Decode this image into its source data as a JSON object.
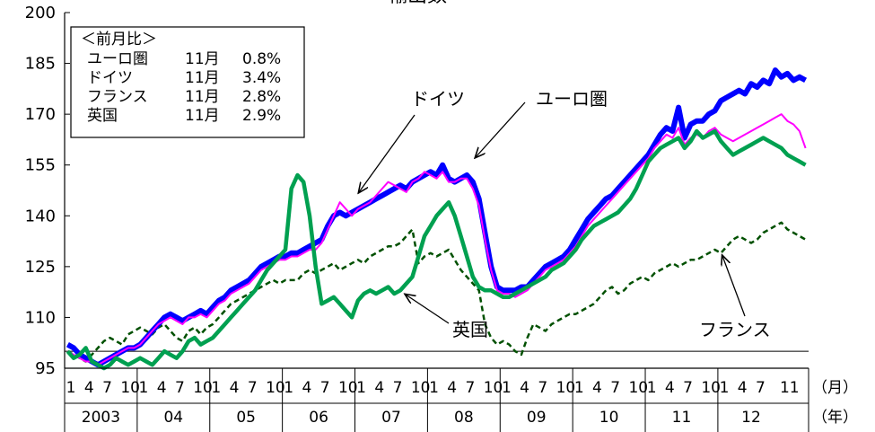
{
  "header": {
    "partial_title": "輸出数"
  },
  "chart_data": {
    "type": "line",
    "y_ticks": [
      95,
      110,
      125,
      140,
      155,
      170,
      185,
      200
    ],
    "ylim": [
      95,
      200
    ],
    "baseline": 100,
    "x_start": "2003-01",
    "x_end": "2012-11",
    "month_tick_labels": [
      "1",
      "4",
      "7",
      "10"
    ],
    "last_year_month_labels": [
      "1",
      "4",
      "7",
      "11"
    ],
    "year_labels": [
      "2003",
      "04",
      "05",
      "06",
      "07",
      "08",
      "09",
      "10",
      "11",
      "12"
    ],
    "x_unit_month": "（月）",
    "x_unit_year": "（年）",
    "legend": {
      "title": "＜前月比＞",
      "rows": [
        {
          "name": "ユーロ圏",
          "month": "11月",
          "value": "0.8%"
        },
        {
          "name": "ドイツ",
          "month": "11月",
          "value": "3.4%"
        },
        {
          "name": "フランス",
          "month": "11月",
          "value": "2.8%"
        },
        {
          "name": "英国",
          "month": "11月",
          "value": "2.9%"
        }
      ]
    },
    "annotations": [
      {
        "label": "ドイツ",
        "series": "germany"
      },
      {
        "label": "ユーロ圏",
        "series": "euro"
      },
      {
        "label": "英国",
        "series": "uk"
      },
      {
        "label": "フランス",
        "series": "france"
      }
    ],
    "series": [
      {
        "key": "euro",
        "name": "ユーロ圏",
        "color": "#0000ff",
        "style": "solid-thick",
        "values": [
          102,
          101,
          99,
          98,
          97,
          96,
          97,
          98,
          99,
          100,
          101,
          101,
          102,
          104,
          106,
          108,
          110,
          111,
          110,
          109,
          110,
          111,
          112,
          111,
          113,
          115,
          116,
          118,
          119,
          120,
          121,
          123,
          125,
          126,
          127,
          128,
          128,
          129,
          129,
          130,
          131,
          132,
          133,
          137,
          140,
          141,
          140,
          141,
          142,
          143,
          144,
          145,
          146,
          147,
          148,
          149,
          148,
          150,
          151,
          152,
          153,
          152,
          155,
          151,
          150,
          151,
          152,
          150,
          145,
          135,
          125,
          119,
          118,
          118,
          118,
          119,
          119,
          121,
          123,
          125,
          126,
          127,
          128,
          130,
          133,
          136,
          139,
          141,
          143,
          145,
          146,
          148,
          150,
          152,
          154,
          156,
          158,
          161,
          164,
          166,
          165,
          172,
          163,
          167,
          168,
          168,
          170,
          171,
          174,
          175,
          176,
          177,
          176,
          179,
          178,
          180,
          179,
          183,
          181,
          182,
          180,
          181,
          180
        ]
      },
      {
        "key": "germany",
        "name": "ドイツ",
        "color": "#ff00ff",
        "style": "solid-thin",
        "values": [
          100,
          99,
          98,
          97,
          97,
          96,
          97,
          98,
          99,
          100,
          101,
          101,
          102,
          104,
          106,
          108,
          109,
          110,
          109,
          108,
          110,
          110,
          111,
          110,
          112,
          114,
          115,
          117,
          118,
          119,
          120,
          122,
          124,
          125,
          126,
          127,
          127,
          128,
          128,
          129,
          130,
          130,
          132,
          136,
          140,
          144,
          142,
          140,
          142,
          143,
          144,
          146,
          148,
          150,
          149,
          148,
          147,
          150,
          151,
          153,
          152,
          151,
          153,
          150,
          150,
          151,
          151,
          148,
          143,
          133,
          124,
          118,
          117,
          117,
          116,
          117,
          118,
          120,
          122,
          124,
          125,
          126,
          127,
          129,
          131,
          134,
          137,
          139,
          141,
          143,
          145,
          147,
          149,
          151,
          153,
          155,
          157,
          160,
          162,
          164,
          163,
          166,
          161,
          163,
          164,
          163,
          165,
          166,
          164,
          163,
          162,
          163,
          164,
          165,
          166,
          167,
          168,
          169,
          170,
          168,
          167,
          165,
          160
        ]
      },
      {
        "key": "france",
        "name": "フランス",
        "color": "#005000",
        "style": "dashed",
        "values": [
          100,
          99,
          98,
          97,
          99,
          101,
          103,
          104,
          103,
          102,
          105,
          106,
          107,
          106,
          105,
          107,
          108,
          106,
          104,
          103,
          106,
          107,
          105,
          107,
          108,
          110,
          112,
          114,
          115,
          116,
          117,
          118,
          119,
          120,
          121,
          120,
          121,
          121,
          121,
          123,
          124,
          123,
          124,
          125,
          126,
          124,
          125,
          126,
          127,
          126,
          128,
          129,
          130,
          131,
          131,
          132,
          134,
          136,
          126,
          128,
          129,
          128,
          129,
          130,
          127,
          124,
          122,
          120,
          118,
          108,
          104,
          102,
          103,
          102,
          100,
          99,
          104,
          108,
          107,
          106,
          108,
          109,
          110,
          111,
          111,
          112,
          113,
          114,
          116,
          118,
          119,
          117,
          118,
          120,
          121,
          122,
          121,
          123,
          124,
          125,
          126,
          125,
          126,
          127,
          127,
          128,
          129,
          130,
          129,
          131,
          133,
          134,
          133,
          132,
          133,
          135,
          136,
          137,
          138,
          136,
          135,
          134,
          133
        ]
      },
      {
        "key": "uk",
        "name": "英国",
        "color": "#00a050",
        "style": "solid-medium",
        "values": [
          100,
          98,
          99,
          101,
          97,
          96,
          95,
          96,
          98,
          97,
          96,
          97,
          98,
          97,
          96,
          98,
          100,
          99,
          98,
          100,
          103,
          104,
          102,
          103,
          104,
          106,
          108,
          110,
          112,
          114,
          116,
          118,
          121,
          124,
          126,
          128,
          130,
          148,
          152,
          150,
          140,
          125,
          114,
          115,
          116,
          114,
          112,
          110,
          115,
          117,
          118,
          117,
          118,
          119,
          117,
          118,
          120,
          122,
          128,
          134,
          137,
          140,
          142,
          144,
          140,
          134,
          128,
          122,
          119,
          118,
          118,
          117,
          116,
          116,
          117,
          118,
          119,
          120,
          121,
          122,
          124,
          125,
          126,
          128,
          130,
          133,
          135,
          137,
          138,
          139,
          140,
          141,
          143,
          145,
          148,
          152,
          156,
          158,
          160,
          161,
          162,
          163,
          160,
          162,
          165,
          163,
          164,
          165,
          162,
          160,
          158,
          159,
          160,
          161,
          162,
          163,
          162,
          161,
          160,
          158,
          157,
          156,
          155
        ]
      }
    ]
  }
}
